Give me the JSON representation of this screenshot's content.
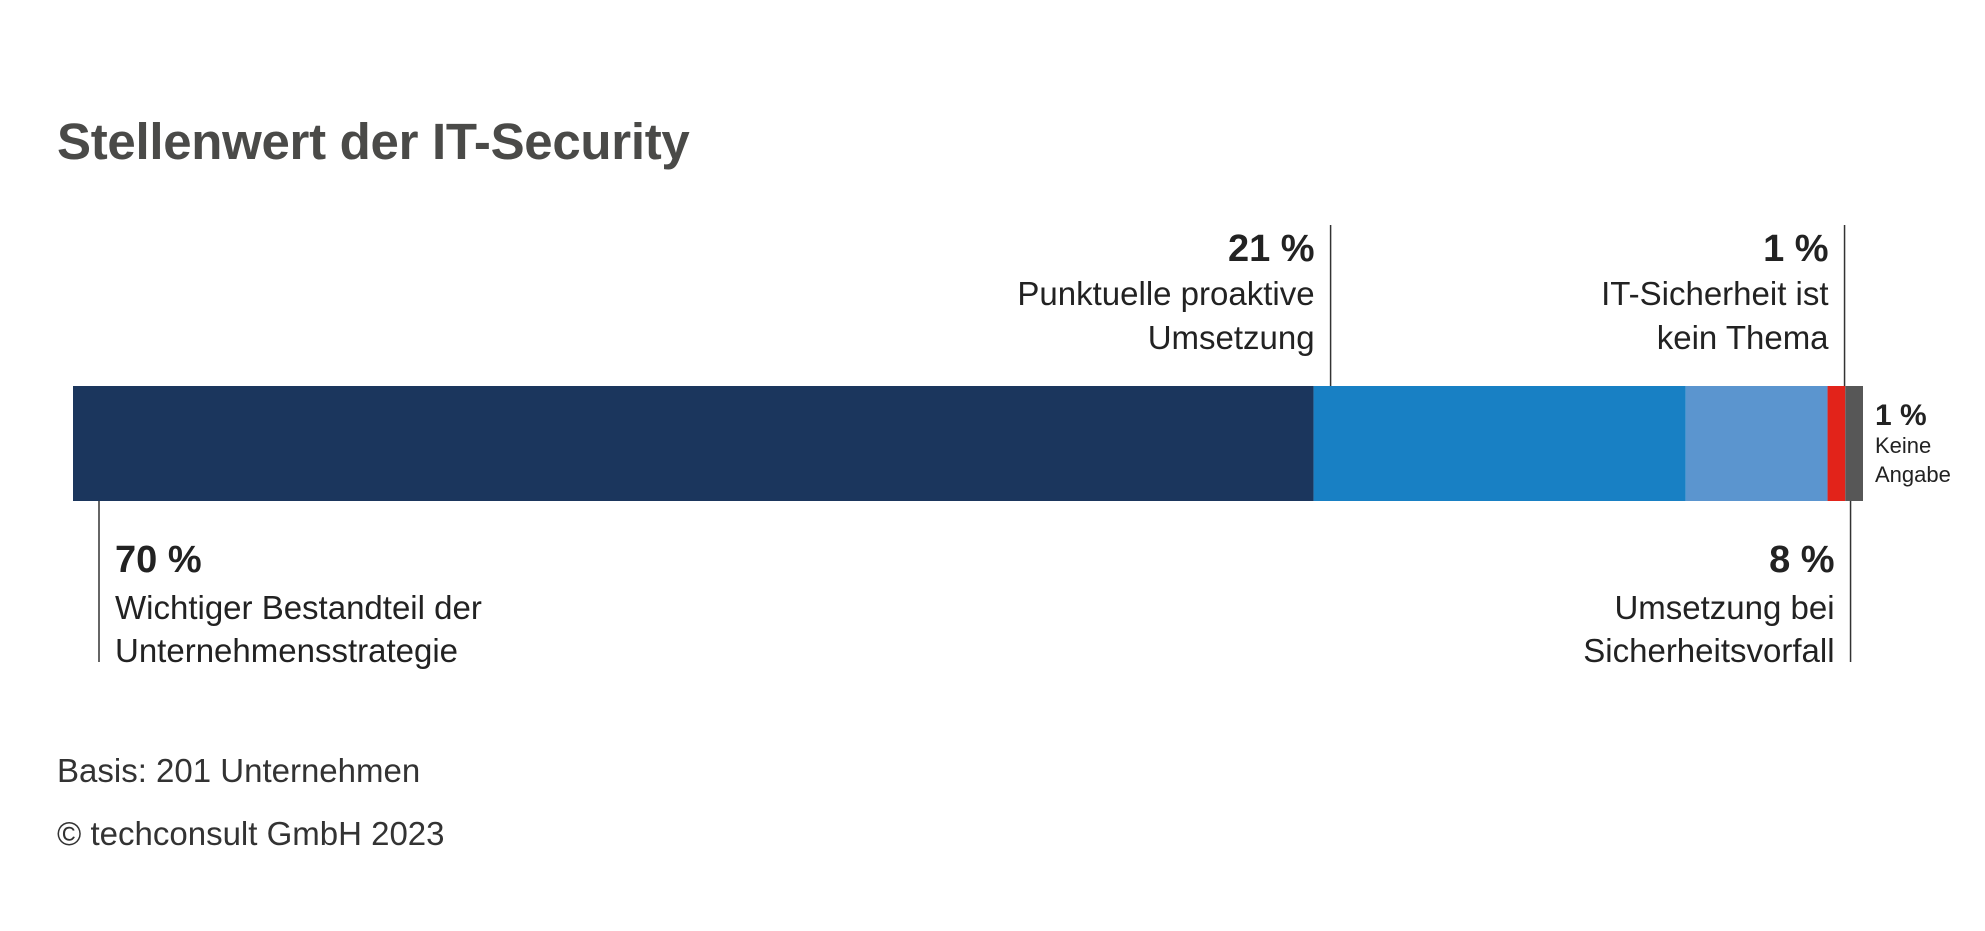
{
  "chart_data": {
    "type": "bar",
    "orientation": "horizontal",
    "stacked": true,
    "title": "Stellenwert der IT-Security",
    "categories": [
      "Wichtiger Bestandteil der Unternehmensstrategie",
      "Punktuelle proaktive Umsetzung",
      "Umsetzung bei Sicherheitsvorfall",
      "IT-Sicherheit ist kein Thema",
      "Keine Angabe"
    ],
    "series": [
      {
        "values": [
          70,
          21,
          8,
          1,
          1
        ],
        "value_labels": [
          "70 %",
          "21 %",
          "8 %",
          "1 %",
          "1 %"
        ],
        "colors": [
          "#1b365d",
          "#1880c4",
          "#5b95cf",
          "#e2231a",
          "#575757"
        ]
      }
    ],
    "annotations": [
      {
        "value_label": "70 %",
        "lines": [
          "Wichtiger Bestandteil der",
          "Unternehmensstrategie"
        ],
        "position": "below"
      },
      {
        "value_label": "21 %",
        "lines": [
          "Punktuelle proaktive",
          "Umsetzung"
        ],
        "position": "above"
      },
      {
        "value_label": "8 %",
        "lines": [
          "Umsetzung bei",
          "Sicherheitsvorfall"
        ],
        "position": "below"
      },
      {
        "value_label": "1 %",
        "lines": [
          "IT-Sicherheit ist",
          "kein Thema"
        ],
        "position": "above"
      },
      {
        "value_label": "1 %",
        "lines": [
          "Keine",
          "Angabe"
        ],
        "position": "right"
      }
    ],
    "legend": "none",
    "grid": false
  },
  "footer": {
    "basis": "Basis: 201 Unternehmen",
    "copyright": "© techconsult GmbH 2023"
  }
}
